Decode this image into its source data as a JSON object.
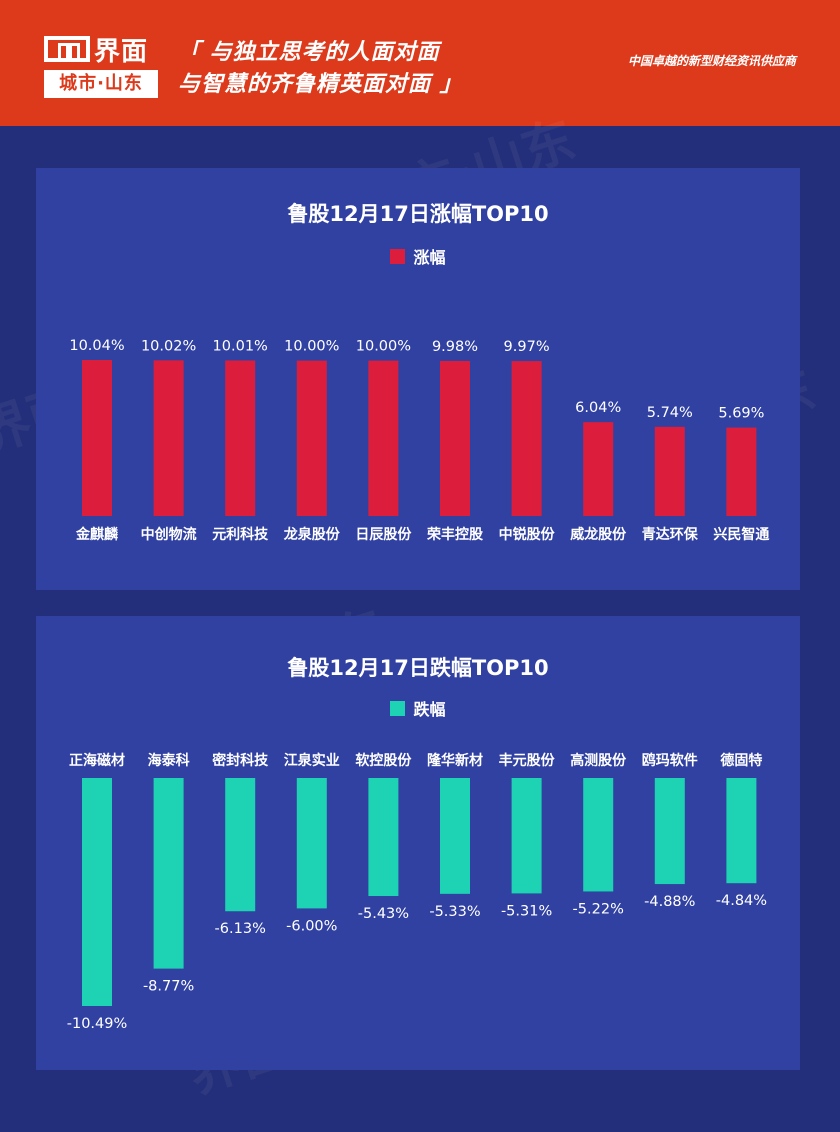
{
  "header": {
    "brand": "界面",
    "city": "城市·山东",
    "slogan_line1": "「 与独立思考的人面对面",
    "slogan_line2": "与智慧的齐鲁精英面对面 」",
    "tagline": "中国卓越的新型财经资讯供应商",
    "colors": {
      "background": "#dd3a1c",
      "page_background": "#232f7a",
      "panel_background": "#3141a2"
    }
  },
  "watermark_text": "界面 城市·山东",
  "chart_data": [
    {
      "type": "bar",
      "title": "鲁股12月17日涨幅TOP10",
      "categories": [
        "金麒麟",
        "中创物流",
        "元利科技",
        "龙泉股份",
        "日辰股份",
        "荣丰控股",
        "中锐股份",
        "威龙股份",
        "青达环保",
        "兴民智通"
      ],
      "series": [
        {
          "name": "涨幅",
          "values": [
            10.04,
            10.02,
            10.01,
            10.0,
            10.0,
            9.98,
            9.97,
            6.04,
            5.74,
            5.69
          ],
          "labels": [
            "10.04%",
            "10.02%",
            "10.01%",
            "10.00%",
            "10.00%",
            "9.98%",
            "9.97%",
            "6.04%",
            "5.74%",
            "5.69%"
          ],
          "color": "#dc1e3c"
        }
      ],
      "ylim": [
        0,
        12.5
      ],
      "unit": "%",
      "legend_position": "top-center",
      "grid": false
    },
    {
      "type": "bar",
      "title": "鲁股12月17日跌幅TOP10",
      "categories": [
        "正海磁材",
        "海泰科",
        "密封科技",
        "江泉实业",
        "软控股份",
        "隆华新材",
        "丰元股份",
        "高测股份",
        "鸥玛软件",
        "德固特"
      ],
      "series": [
        {
          "name": "跌幅",
          "values": [
            -10.49,
            -8.77,
            -6.13,
            -6.0,
            -5.43,
            -5.33,
            -5.31,
            -5.22,
            -4.88,
            -4.84
          ],
          "labels": [
            "-10.49%",
            "-8.77%",
            "-6.13%",
            "-6.00%",
            "-5.43%",
            "-5.33%",
            "-5.31%",
            "-5.22%",
            "-4.88%",
            "-4.84%"
          ],
          "color": "#1ed2b4"
        }
      ],
      "ylim": [
        -12,
        0
      ],
      "unit": "%",
      "legend_position": "top-center",
      "grid": false
    }
  ]
}
